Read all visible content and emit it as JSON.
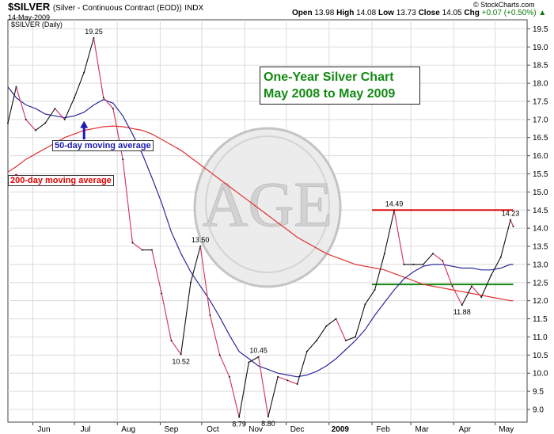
{
  "header": {
    "symbol": "$SILVER",
    "description": "(Silver - Continuous Contract (EOD))",
    "exchange": "INDX",
    "date": "14-May-2009",
    "open_label": "Open",
    "open": "13.98",
    "high_label": "High",
    "high": "14.08",
    "low_label": "Low",
    "low": "13.73",
    "close_label": "Close",
    "close": "14.05",
    "chg_label": "Chg",
    "chg": "+0.07 (+0.50%)",
    "chg_arrow": "▲"
  },
  "brand": "© StockCharts.com",
  "plot_label": "$SILVER (Daily)",
  "annotation": {
    "line1": "One-Year Silver Chart",
    "line2": "May 2008 to May 2009"
  },
  "callouts": {
    "ma50": "50-day moving average",
    "ma200": "200-day moving average"
  },
  "colors": {
    "price_down": "#d0305a",
    "price_up": "#111111",
    "ma50": "#2b2b9a",
    "ma200": "#e03030",
    "resistance": "#dd1111",
    "support": "#118811",
    "title_text": "#138a13",
    "callout_50": "#1c1cb0",
    "callout_200": "#e00000",
    "grid": "#dcdcdc"
  },
  "chart_data": {
    "type": "line",
    "title": "One-Year Silver Chart May 2008 to May 2009",
    "x": [
      "2008-05-14",
      "2008-05-20",
      "2008-05-27",
      "2008-06-03",
      "2008-06-10",
      "2008-06-17",
      "2008-06-24",
      "2008-07-01",
      "2008-07-08",
      "2008-07-15",
      "2008-07-22",
      "2008-07-29",
      "2008-08-05",
      "2008-08-12",
      "2008-08-19",
      "2008-08-26",
      "2008-09-02",
      "2008-09-09",
      "2008-09-16",
      "2008-09-23",
      "2008-09-30",
      "2008-10-07",
      "2008-10-14",
      "2008-10-21",
      "2008-10-28",
      "2008-11-04",
      "2008-11-11",
      "2008-11-18",
      "2008-11-25",
      "2008-12-02",
      "2008-12-09",
      "2008-12-16",
      "2008-12-23",
      "2008-12-30",
      "2009-01-06",
      "2009-01-13",
      "2009-01-20",
      "2009-01-27",
      "2009-02-03",
      "2009-02-10",
      "2009-02-17",
      "2009-02-24",
      "2009-03-03",
      "2009-03-10",
      "2009-03-17",
      "2009-03-24",
      "2009-03-31",
      "2009-04-07",
      "2009-04-14",
      "2009-04-21",
      "2009-04-28",
      "2009-05-05",
      "2009-05-12",
      "2009-05-14"
    ],
    "series": [
      {
        "role": "price",
        "values": [
          16.9,
          17.9,
          17.0,
          16.7,
          16.9,
          17.3,
          17.0,
          17.6,
          18.3,
          19.25,
          17.6,
          17.3,
          15.9,
          13.6,
          13.4,
          13.4,
          12.2,
          10.9,
          10.52,
          12.5,
          13.5,
          11.6,
          10.5,
          9.9,
          8.79,
          10.3,
          10.45,
          8.8,
          9.9,
          9.8,
          9.7,
          10.6,
          10.9,
          11.3,
          11.5,
          10.9,
          11.0,
          11.9,
          12.3,
          13.3,
          14.49,
          13.0,
          13.0,
          13.0,
          13.3,
          13.1,
          12.4,
          11.88,
          12.4,
          12.1,
          12.7,
          13.2,
          14.23,
          14.05
        ]
      },
      {
        "name": "50-day moving average",
        "values": [
          17.9,
          17.6,
          17.4,
          17.3,
          17.15,
          17.1,
          17.05,
          17.1,
          17.2,
          17.4,
          17.55,
          17.45,
          17.1,
          16.6,
          16.05,
          15.4,
          14.7,
          13.9,
          13.3,
          12.8,
          12.4,
          12.0,
          11.55,
          11.05,
          10.6,
          10.4,
          10.2,
          10.1,
          10.0,
          9.95,
          9.9,
          9.95,
          10.05,
          10.2,
          10.4,
          10.65,
          10.9,
          11.2,
          11.6,
          11.95,
          12.3,
          12.6,
          12.8,
          12.95,
          13.0,
          13.0,
          12.95,
          12.9,
          12.9,
          12.85,
          12.85,
          12.9,
          13.0,
          13.0
        ]
      },
      {
        "name": "200-day moving average",
        "values": [
          15.55,
          15.7,
          15.9,
          16.05,
          16.2,
          16.35,
          16.5,
          16.6,
          16.7,
          16.75,
          16.8,
          16.82,
          16.8,
          16.75,
          16.7,
          16.6,
          16.45,
          16.3,
          16.15,
          15.95,
          15.75,
          15.55,
          15.35,
          15.15,
          14.95,
          14.75,
          14.55,
          14.35,
          14.15,
          13.95,
          13.75,
          13.6,
          13.45,
          13.3,
          13.2,
          13.1,
          13.0,
          12.95,
          12.9,
          12.85,
          12.75,
          12.65,
          12.55,
          12.45,
          12.4,
          12.35,
          12.3,
          12.25,
          12.2,
          12.15,
          12.1,
          12.05,
          12.0,
          12.0
        ]
      }
    ],
    "resistance": {
      "from": "2009-02-01",
      "to": "2009-05-14",
      "value": 14.5
    },
    "support": {
      "from": "2009-02-01",
      "to": "2009-05-14",
      "value": 12.45
    },
    "peak_labels": [
      {
        "x": "2008-07-15",
        "y": 19.25,
        "text": "19.25",
        "pos": "above"
      },
      {
        "x": "2008-09-30",
        "y": 13.5,
        "text": "13.50",
        "pos": "above"
      },
      {
        "x": "2008-09-16",
        "y": 10.52,
        "text": "10.52",
        "pos": "below"
      },
      {
        "x": "2008-11-11",
        "y": 10.45,
        "text": "10.45",
        "pos": "above"
      },
      {
        "x": "2008-10-28",
        "y": 8.79,
        "text": "8.79",
        "pos": "below"
      },
      {
        "x": "2008-11-18",
        "y": 8.8,
        "text": "8.80",
        "pos": "below"
      },
      {
        "x": "2009-02-17",
        "y": 14.49,
        "text": "14.49",
        "pos": "above"
      },
      {
        "x": "2009-04-07",
        "y": 11.88,
        "text": "11.88",
        "pos": "below"
      },
      {
        "x": "2009-05-12",
        "y": 14.23,
        "text": "14.23",
        "pos": "above"
      }
    ],
    "x_ticks": [
      {
        "date": "2008-06-01",
        "label": "Jun"
      },
      {
        "date": "2008-07-01",
        "label": "Jul"
      },
      {
        "date": "2008-08-01",
        "label": "Aug"
      },
      {
        "date": "2008-09-01",
        "label": "Sep"
      },
      {
        "date": "2008-10-01",
        "label": "Oct"
      },
      {
        "date": "2008-11-01",
        "label": "Nov"
      },
      {
        "date": "2008-12-01",
        "label": "Dec"
      },
      {
        "date": "2009-01-01",
        "label": "2009"
      },
      {
        "date": "2009-02-01",
        "label": "Feb"
      },
      {
        "date": "2009-03-01",
        "label": "Mar"
      },
      {
        "date": "2009-04-01",
        "label": "Apr"
      },
      {
        "date": "2009-05-01",
        "label": "May"
      }
    ],
    "y_ticks": [
      "19.5",
      "19.0",
      "18.5",
      "18.0",
      "17.5",
      "17.0",
      "16.5",
      "16.0",
      "15.5",
      "15.0",
      "14.5",
      "14.0",
      "13.5",
      "13.0",
      "12.5",
      "12.0",
      "11.5",
      "11.0",
      "10.5",
      "10.0",
      "9.5",
      "9.0"
    ],
    "xlim": [
      "2008-05-14",
      "2009-05-24"
    ],
    "ylim": [
      8.65,
      19.75
    ],
    "grid": true,
    "y_axis_side": "right",
    "watermark": "AGE"
  }
}
